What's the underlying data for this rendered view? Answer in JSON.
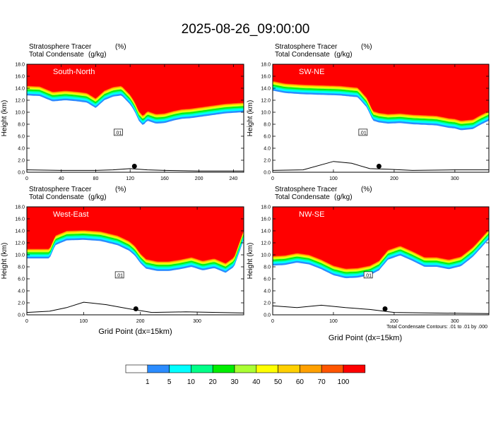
{
  "figure": {
    "title": "2025-08-26_09:00:00",
    "var_left_1": "Stratosphere Tracer",
    "var_right_1": "(%)",
    "var_left_2": "Total Condensate",
    "var_right_2": "(g/kg)",
    "contour_note": "Total Condensate Contours: .01 to .01 by .000",
    "colors": [
      "#ffffff",
      "#2b8cff",
      "#00ffff",
      "#00ff88",
      "#00ee00",
      "#aaff33",
      "#ffff00",
      "#ffd000",
      "#ffa000",
      "#ff5500",
      "#ff0000"
    ]
  },
  "chart_data": [
    {
      "type": "contour",
      "panel_label": "South-North",
      "ylabel": "Height (km)",
      "xlabel": "",
      "xlim": [
        0,
        252
      ],
      "ylim": [
        0,
        18
      ],
      "xticks": [
        0,
        40,
        80,
        120,
        160,
        200,
        240
      ],
      "yticks": [
        0.0,
        2.0,
        4.0,
        6.0,
        8.0,
        10.0,
        12.0,
        14.0,
        16.0,
        18.0
      ],
      "contour_label": ".01",
      "marker_point": {
        "x": 125,
        "y": 1.0
      },
      "tropopause_height_km": [
        [
          0,
          14.4
        ],
        [
          15,
          14.3
        ],
        [
          30,
          13.4
        ],
        [
          45,
          13.6
        ],
        [
          60,
          13.4
        ],
        [
          70,
          13.2
        ],
        [
          80,
          12.3
        ],
        [
          90,
          13.6
        ],
        [
          100,
          14.2
        ],
        [
          110,
          14.4
        ],
        [
          120,
          12.9
        ],
        [
          125,
          11.8
        ],
        [
          130,
          10.2
        ],
        [
          135,
          9.4
        ],
        [
          140,
          10.2
        ],
        [
          150,
          9.7
        ],
        [
          160,
          9.8
        ],
        [
          170,
          10.2
        ],
        [
          180,
          10.5
        ],
        [
          190,
          10.6
        ],
        [
          200,
          10.8
        ],
        [
          210,
          11.0
        ],
        [
          220,
          11.2
        ],
        [
          230,
          11.4
        ],
        [
          240,
          11.5
        ],
        [
          252,
          11.6
        ]
      ],
      "terrain_height_km": [
        [
          0,
          0.4
        ],
        [
          40,
          0.3
        ],
        [
          80,
          0.3
        ],
        [
          100,
          0.4
        ],
        [
          120,
          0.6
        ],
        [
          140,
          0.4
        ],
        [
          160,
          0.3
        ],
        [
          200,
          0.2
        ],
        [
          252,
          0.2
        ]
      ]
    },
    {
      "type": "contour",
      "panel_label": "SW-NE",
      "ylabel": "Height (km)",
      "xlabel": "",
      "xlim": [
        0,
        356
      ],
      "ylim": [
        0,
        18
      ],
      "xticks": [
        0,
        100,
        200,
        300
      ],
      "yticks": [
        0.0,
        2.0,
        4.0,
        6.0,
        8.0,
        10.0,
        12.0,
        14.0,
        16.0,
        18.0
      ],
      "contour_label": ".01",
      "marker_point": {
        "x": 175,
        "y": 1.0
      },
      "tropopause_height_km": [
        [
          0,
          15.2
        ],
        [
          20,
          14.8
        ],
        [
          50,
          14.6
        ],
        [
          80,
          14.5
        ],
        [
          110,
          14.4
        ],
        [
          140,
          14.1
        ],
        [
          155,
          12.4
        ],
        [
          165,
          10.2
        ],
        [
          175,
          9.9
        ],
        [
          190,
          9.7
        ],
        [
          210,
          9.8
        ],
        [
          230,
          9.6
        ],
        [
          250,
          9.5
        ],
        [
          270,
          9.4
        ],
        [
          290,
          9.0
        ],
        [
          300,
          8.9
        ],
        [
          310,
          8.6
        ],
        [
          320,
          8.7
        ],
        [
          330,
          8.8
        ],
        [
          340,
          9.4
        ],
        [
          356,
          10.2
        ]
      ],
      "terrain_height_km": [
        [
          0,
          0.3
        ],
        [
          50,
          0.4
        ],
        [
          100,
          1.8
        ],
        [
          130,
          1.5
        ],
        [
          160,
          0.6
        ],
        [
          190,
          0.5
        ],
        [
          230,
          0.3
        ],
        [
          300,
          0.4
        ],
        [
          356,
          0.4
        ]
      ]
    },
    {
      "type": "contour",
      "panel_label": "West-East",
      "ylabel": "Height (km)",
      "xlabel": "Grid Point  (dx=15km)",
      "xlim": [
        0,
        382
      ],
      "ylim": [
        0,
        18
      ],
      "xticks": [
        0,
        100,
        200,
        300
      ],
      "yticks": [
        0.0,
        2.0,
        4.0,
        6.0,
        8.0,
        10.0,
        12.0,
        14.0,
        16.0,
        18.0
      ],
      "contour_label": ".01",
      "marker_point": {
        "x": 192,
        "y": 1.0
      },
      "tropopause_height_km": [
        [
          0,
          11.0
        ],
        [
          20,
          11.0
        ],
        [
          40,
          11.0
        ],
        [
          50,
          13.2
        ],
        [
          70,
          14.0
        ],
        [
          100,
          14.1
        ],
        [
          130,
          13.9
        ],
        [
          160,
          13.2
        ],
        [
          180,
          12.3
        ],
        [
          190,
          11.5
        ],
        [
          200,
          10.2
        ],
        [
          210,
          9.3
        ],
        [
          230,
          8.9
        ],
        [
          250,
          8.9
        ],
        [
          270,
          9.2
        ],
        [
          290,
          9.6
        ],
        [
          310,
          9.0
        ],
        [
          330,
          9.4
        ],
        [
          350,
          8.6
        ],
        [
          365,
          9.6
        ],
        [
          382,
          14.1
        ]
      ],
      "terrain_height_km": [
        [
          0,
          0.4
        ],
        [
          40,
          0.6
        ],
        [
          70,
          1.2
        ],
        [
          100,
          2.1
        ],
        [
          140,
          1.7
        ],
        [
          180,
          1.0
        ],
        [
          220,
          0.4
        ],
        [
          280,
          0.5
        ],
        [
          382,
          0.3
        ]
      ]
    },
    {
      "type": "contour",
      "panel_label": "NW-SE",
      "ylabel": "Height (km)",
      "xlabel": "Grid Point  (dx=15km)",
      "xlim": [
        0,
        356
      ],
      "ylim": [
        0,
        18
      ],
      "xticks": [
        0,
        100,
        200,
        300
      ],
      "yticks": [
        0.0,
        2.0,
        4.0,
        6.0,
        8.0,
        10.0,
        12.0,
        14.0,
        16.0,
        18.0
      ],
      "contour_label": ".01",
      "marker_point": {
        "x": 185,
        "y": 1.0
      },
      "tropopause_height_km": [
        [
          0,
          9.8
        ],
        [
          20,
          9.9
        ],
        [
          40,
          10.3
        ],
        [
          60,
          10.0
        ],
        [
          80,
          9.2
        ],
        [
          100,
          8.2
        ],
        [
          120,
          7.7
        ],
        [
          140,
          7.8
        ],
        [
          160,
          8.2
        ],
        [
          175,
          9.0
        ],
        [
          190,
          10.8
        ],
        [
          210,
          11.5
        ],
        [
          230,
          10.6
        ],
        [
          250,
          9.6
        ],
        [
          270,
          9.6
        ],
        [
          290,
          9.2
        ],
        [
          310,
          9.7
        ],
        [
          330,
          11.3
        ],
        [
          356,
          14.2
        ]
      ],
      "terrain_height_km": [
        [
          0,
          1.5
        ],
        [
          40,
          1.2
        ],
        [
          80,
          1.6
        ],
        [
          120,
          1.2
        ],
        [
          160,
          0.9
        ],
        [
          200,
          0.4
        ],
        [
          260,
          0.3
        ],
        [
          356,
          0.2
        ]
      ]
    }
  ],
  "colorbar": {
    "levels": [
      "1",
      "5",
      "10",
      "20",
      "30",
      "40",
      "50",
      "60",
      "70",
      "100"
    ],
    "colors": [
      "#ffffff",
      "#2b8cff",
      "#00ffff",
      "#00ff88",
      "#00ee00",
      "#aaff33",
      "#ffff00",
      "#ffd000",
      "#ffa000",
      "#ff5500",
      "#ff0000"
    ]
  }
}
